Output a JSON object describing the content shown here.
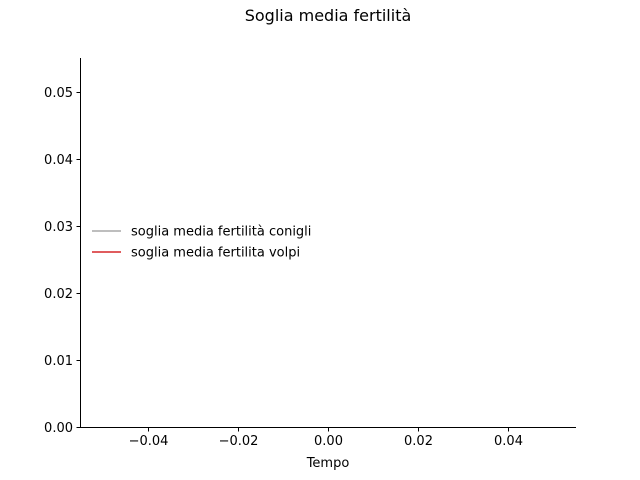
{
  "chart_data": {
    "type": "line",
    "title": "Soglia media fertilità",
    "xlabel": "Tempo",
    "ylabel": "",
    "xlim": [
      -0.055,
      0.055
    ],
    "ylim": [
      0.0,
      0.055
    ],
    "x_ticks": [
      -0.04,
      -0.02,
      0.0,
      0.02,
      0.04
    ],
    "x_tick_labels": [
      "−0.04",
      "−0.02",
      "0.00",
      "0.02",
      "0.04"
    ],
    "y_ticks": [
      0.0,
      0.01,
      0.02,
      0.03,
      0.04,
      0.05
    ],
    "y_tick_labels": [
      "0.00",
      "0.01",
      "0.02",
      "0.03",
      "0.04",
      "0.05"
    ],
    "grid": false,
    "legend_position": "center-left",
    "series": [
      {
        "name": "soglia media fertilità conigli",
        "color": "#a9a9a9",
        "x": [],
        "y": []
      },
      {
        "name": "soglia media fertilita volpi",
        "color": "#d62728",
        "x": [],
        "y": []
      }
    ]
  }
}
